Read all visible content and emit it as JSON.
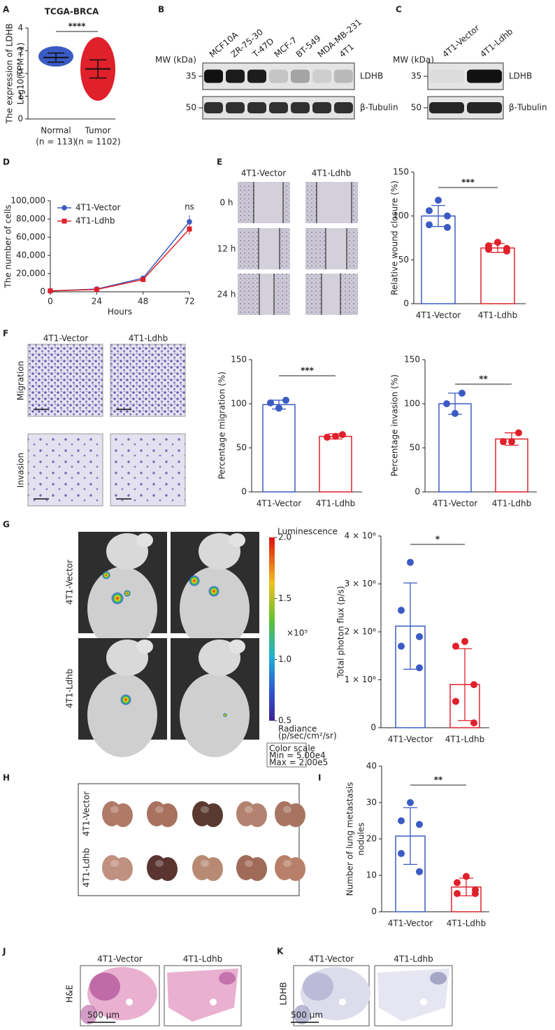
{
  "panel_labels": [
    "A",
    "B",
    "C",
    "D",
    "E",
    "F",
    "G",
    "H",
    "I",
    "J",
    "K"
  ],
  "chart_data": [
    {
      "type": "strip",
      "title": "TCGA-BRCA",
      "ylabel": [
        "The expression of LDHB",
        "Log10(TPM+1)"
      ],
      "categories": [
        "Normal",
        "Tumor"
      ],
      "category_notes": [
        "(n = 113)",
        "(n = 1102)"
      ],
      "values": [
        2.7,
        2.2
      ],
      "errors": [
        0.2,
        0.4
      ],
      "ranges": [
        [
          2.3,
          3.2
        ],
        [
          0.8,
          3.6
        ]
      ],
      "colors": [
        "#3b5bc4",
        "#e0202a"
      ],
      "ylim": [
        0,
        4
      ],
      "yticks": [
        0,
        1,
        2,
        3,
        4
      ],
      "significance": "****"
    },
    {
      "type": "line",
      "ylabel": "The number of cells",
      "xlabel": "Hours",
      "x": [
        0,
        24,
        48,
        72
      ],
      "series": [
        {
          "name": "4T1-Vector",
          "color": "#3b5bc4",
          "values": [
            1000,
            3000,
            15000,
            77000
          ],
          "errors": [
            300,
            500,
            1200,
            7000
          ]
        },
        {
          "name": "4T1-Ldhb",
          "color": "#e0202a",
          "values": [
            1000,
            2500,
            13500,
            69000
          ],
          "errors": [
            300,
            500,
            1200,
            6000
          ]
        }
      ],
      "xlim": [
        0,
        72
      ],
      "xticks": [
        0,
        24,
        48,
        72
      ],
      "ylim": [
        0,
        100000
      ],
      "yticks": [
        0,
        {
          "value": 20000,
          "label": "20,000"
        },
        {
          "value": 40000,
          "label": "40,000"
        },
        {
          "value": 60000,
          "label": "60,000"
        },
        {
          "value": 80000,
          "label": "80,000"
        },
        {
          "value": 100000,
          "label": "100,000"
        }
      ],
      "annotation": "ns",
      "legend": "upper left"
    },
    {
      "type": "bar",
      "ylabel": "Relative wound closure (%)",
      "categories": [
        "4T1-Vector",
        "4T1-Ldhb"
      ],
      "values": [
        100,
        63.5
      ],
      "errors": [
        12,
        5
      ],
      "points": [
        [
          118,
          106,
          100,
          90,
          87
        ],
        [
          70,
          66,
          63,
          62,
          60
        ]
      ],
      "colors": [
        "#3b5bc4",
        "#e0202a"
      ],
      "ylim": [
        0,
        150
      ],
      "yticks": [
        0,
        50,
        100,
        150
      ],
      "significance": "***"
    },
    {
      "type": "bar",
      "ylabel": "Percentage migration (%)",
      "categories": [
        "4T1-Vector",
        "4T1-Ldhb"
      ],
      "values": [
        99,
        63
      ],
      "errors": [
        5,
        3
      ],
      "points": [
        [
          104,
          101,
          95
        ],
        [
          65,
          62,
          63
        ]
      ],
      "colors": [
        "#3b5bc4",
        "#e0202a"
      ],
      "ylim": [
        0,
        150
      ],
      "yticks": [
        0,
        50,
        100,
        150
      ],
      "significance": "***"
    },
    {
      "type": "bar",
      "ylabel": "Percentage invasion (%)",
      "categories": [
        "4T1-Vector",
        "4T1-Ldhb"
      ],
      "values": [
        100,
        60
      ],
      "errors": [
        12,
        7
      ],
      "points": [
        [
          112,
          100,
          89
        ],
        [
          67,
          57,
          57
        ]
      ],
      "colors": [
        "#3b5bc4",
        "#e0202a"
      ],
      "ylim": [
        0,
        150
      ],
      "yticks": [
        0,
        50,
        100,
        150
      ],
      "significance": "**"
    },
    {
      "type": "bar",
      "ylabel": "Total photon flux (p/s)",
      "categories": [
        "4T1-Vector",
        "4T1-Ldhb"
      ],
      "values": [
        2120000,
        900000
      ],
      "errors": [
        900000,
        750000
      ],
      "points": [
        [
          3450000,
          2450000,
          1900000,
          1700000,
          1250000
        ],
        [
          1800000,
          1700000,
          900000,
          550000,
          100000
        ]
      ],
      "colors": [
        "#3b5bc4",
        "#e0202a"
      ],
      "ylim": [
        0,
        4000000
      ],
      "yticks": [
        0,
        {
          "value": 1000000,
          "label": "1 × 10⁶"
        },
        {
          "value": 2000000,
          "label": "2 × 10⁶"
        },
        {
          "value": 3000000,
          "label": "3 × 10⁶"
        },
        {
          "value": 4000000,
          "label": "4 × 10⁶"
        }
      ],
      "significance": "*"
    },
    {
      "type": "bar",
      "ylabel": [
        "Number of lung metastasis",
        "nodules"
      ],
      "categories": [
        "4T1-Vector",
        "4T1-Ldhb"
      ],
      "values": [
        20.8,
        6.8
      ],
      "errors": [
        7.8,
        2.4
      ],
      "points": [
        [
          30,
          25,
          24,
          16,
          11
        ],
        [
          9.7,
          8,
          6,
          5,
          5
        ]
      ],
      "colors": [
        "#3b5bc4",
        "#e0202a"
      ],
      "ylim": [
        0,
        40
      ],
      "yticks": [
        0,
        10,
        20,
        30,
        40
      ],
      "significance": "**"
    }
  ],
  "blots": [
    {
      "mw_label": "MW (kDa)",
      "lanes": [
        "MCF10A",
        "ZR-75-30",
        "T-47D",
        "MCF-7",
        "BT-549",
        "MDA-MB-231",
        "4T1"
      ],
      "rows": [
        {
          "name": "LDHB",
          "marker": "35",
          "intensity": [
            1,
            0.95,
            0.95,
            0.15,
            0.3,
            0.1,
            0.2
          ]
        },
        {
          "name": "β-Tubulin",
          "marker": "50",
          "intensity": [
            0.85,
            0.85,
            0.85,
            0.85,
            0.85,
            0.85,
            0.85
          ]
        }
      ]
    },
    {
      "mw_label": "MW (kDa)",
      "lanes": [
        "4T1-Vector",
        "4T1-Ldhb"
      ],
      "rows": [
        {
          "name": "LDHB",
          "marker": "35",
          "intensity": [
            0.04,
            1
          ]
        },
        {
          "name": "β-Tubulin",
          "marker": "50",
          "intensity": [
            0.9,
            0.9
          ]
        }
      ]
    }
  ],
  "wound_assay": {
    "columns": [
      "4T1-Vector",
      "4T1-Ldhb"
    ],
    "rows": [
      "0 h",
      "12 h",
      "24 h"
    ]
  },
  "transwell": {
    "columns": [
      "4T1-Vector",
      "4T1-Ldhb"
    ],
    "rows": [
      "Migration",
      "Invasion"
    ]
  },
  "imaging": {
    "rows": [
      "4T1-Vector",
      "4T1-Ldhb"
    ],
    "colorbar": {
      "title": "Luminescence",
      "lim": [
        0.5,
        2
      ],
      "ticks": [
        {
          "value": 2,
          "label": "2.0"
        },
        1.5,
        {
          "value": 1,
          "label": "1.0"
        },
        0.5
      ],
      "multiplier": "×10⁵",
      "unit": [
        "Radiance",
        "(p/sec/cm²/sr)"
      ],
      "scale_box": [
        "Color scale",
        "Min = 5.00e4",
        "Max = 2.00e5"
      ]
    }
  },
  "lungs": {
    "rows": [
      "4T1-Vector",
      "4T1-Ldhb"
    ]
  },
  "histology": [
    {
      "columns": [
        "4T1-Vector",
        "4T1-Ldhb"
      ],
      "row": "H&E",
      "scale": "500 μm"
    },
    {
      "columns": [
        "4T1-Vector",
        "4T1-Ldhb"
      ],
      "row": "LDHB",
      "scale": "500 μm"
    }
  ]
}
